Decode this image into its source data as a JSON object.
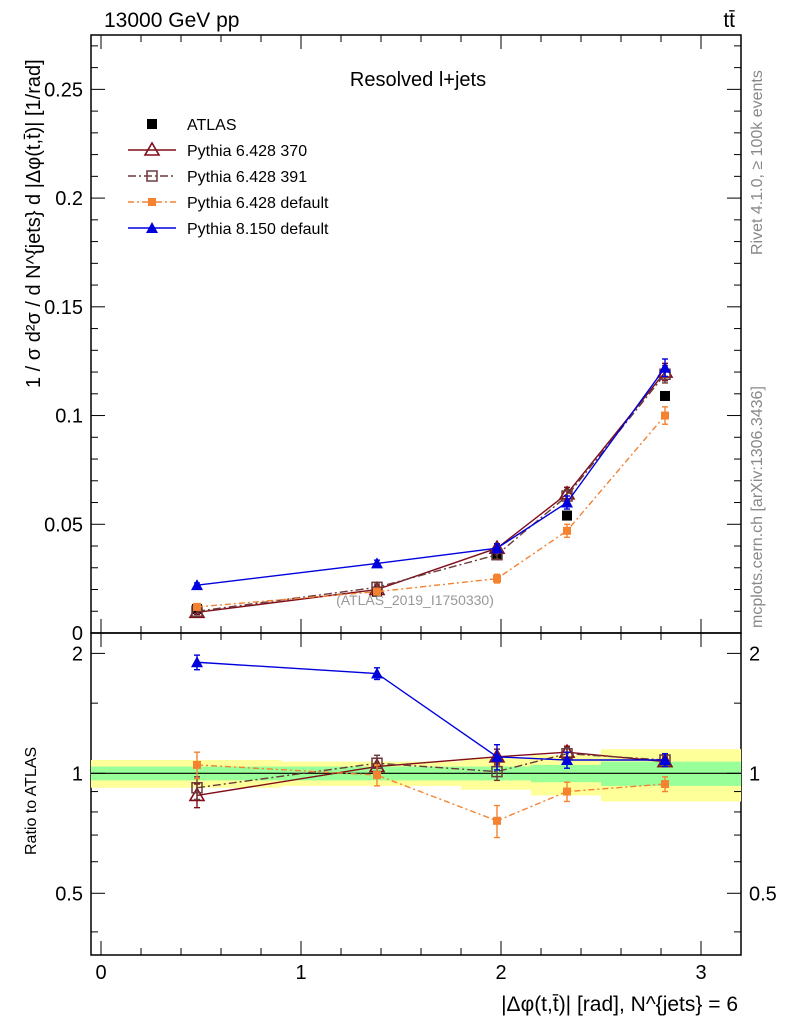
{
  "header": {
    "energy_label": "13000 GeV pp",
    "process_label": "tt̄",
    "panel_title": "Resolved l+jets",
    "analysis_id": "(ATLAS_2019_I1750330)",
    "side_label_top": "Rivet 4.1.0, ≥ 100k events",
    "side_label_bottom": "mcplots.cern.ch [arXiv:1306.3436]"
  },
  "legend": {
    "entries": [
      {
        "key": "atlas",
        "label": "ATLAS"
      },
      {
        "key": "py370",
        "label": "Pythia 6.428 370"
      },
      {
        "key": "py391",
        "label": "Pythia 6.428 391"
      },
      {
        "key": "py6def",
        "label": "Pythia 6.428 default"
      },
      {
        "key": "py8def",
        "label": "Pythia 8.150 default"
      }
    ]
  },
  "colors": {
    "atlas": "#000000",
    "py370": "#800d1a",
    "py391": "#6b3a3a",
    "py6def": "#f58231",
    "py8def": "#0000dd",
    "band_inner": "#99ff99",
    "band_outer": "#ffff99"
  },
  "chart_data": [
    {
      "type": "scatter",
      "title": "Resolved l+jets",
      "xlabel": "|Δφ(t,t̄)| [rad], N^{jets} = 6",
      "ylabel": "1 / σ d²σ / d N^{jets} d |Δφ(t,t̄)| [1/rad]",
      "xlim": [
        -0.05,
        3.2
      ],
      "ylim": [
        0,
        0.275
      ],
      "xticks": [
        0,
        1,
        2,
        3
      ],
      "xtick_labels": [
        "0",
        "1",
        "2",
        "3"
      ],
      "yticks": [
        0,
        0.05,
        0.1,
        0.15,
        0.2,
        0.25
      ],
      "ytick_labels": [
        "0",
        "0.05",
        "0.1",
        "0.15",
        "0.2",
        "0.25"
      ],
      "x": [
        0.48,
        1.38,
        1.98,
        2.33,
        2.82
      ],
      "series": [
        {
          "key": "atlas",
          "name": "ATLAS",
          "values": [
            0.011,
            0.019,
            0.036,
            0.054,
            0.109
          ]
        },
        {
          "key": "py370",
          "name": "Pythia 6.428 370",
          "values": [
            0.0095,
            0.02,
            0.039,
            0.064,
            0.12
          ],
          "errors": [
            0.001,
            0.0015,
            0.002,
            0.003,
            0.004
          ]
        },
        {
          "key": "py391",
          "name": "Pythia 6.428 391",
          "values": [
            0.01,
            0.021,
            0.036,
            0.063,
            0.119
          ],
          "errors": [
            0.001,
            0.0015,
            0.002,
            0.003,
            0.004
          ]
        },
        {
          "key": "py6def",
          "name": "Pythia 6.428 default",
          "values": [
            0.012,
            0.019,
            0.025,
            0.047,
            0.1
          ],
          "errors": [
            0.001,
            0.0015,
            0.002,
            0.003,
            0.004
          ]
        },
        {
          "key": "py8def",
          "name": "Pythia 8.150 default",
          "values": [
            0.022,
            0.032,
            0.039,
            0.06,
            0.122
          ],
          "errors": [
            0.001,
            0.0015,
            0.002,
            0.003,
            0.004
          ]
        }
      ]
    },
    {
      "type": "scatter",
      "ylabel": "Ratio to ATLAS",
      "xlim": [
        -0.05,
        3.2
      ],
      "ylim": [
        0.35,
        2.25
      ],
      "yticks": [
        0.5,
        1,
        2
      ],
      "ytick_labels": [
        "0.5",
        "1",
        "2"
      ],
      "x": [
        0.48,
        1.38,
        1.98,
        2.33,
        2.82
      ],
      "series": [
        {
          "key": "py370",
          "name": "Pythia 6.428 370",
          "values": [
            0.88,
            1.04,
            1.1,
            1.13,
            1.07
          ],
          "errors": [
            0.06,
            0.05,
            0.05,
            0.04,
            0.03
          ]
        },
        {
          "key": "py391",
          "name": "Pythia 6.428 391",
          "values": [
            0.92,
            1.06,
            1.01,
            1.12,
            1.08
          ],
          "errors": [
            0.06,
            0.05,
            0.05,
            0.04,
            0.03
          ]
        },
        {
          "key": "py6def",
          "name": "Pythia 6.428 default",
          "values": [
            1.05,
            0.99,
            0.76,
            0.9,
            0.94
          ],
          "errors": [
            0.08,
            0.06,
            0.07,
            0.05,
            0.04
          ]
        },
        {
          "key": "py8def",
          "name": "Pythia 8.150 default",
          "values": [
            1.9,
            1.78,
            1.1,
            1.08,
            1.08
          ],
          "errors": [
            0.08,
            0.06,
            0.08,
            0.05,
            0.04
          ]
        }
      ],
      "bands": [
        {
          "x0": -0.05,
          "x1": 0.9,
          "inner": [
            0.96,
            1.04
          ],
          "outer": [
            0.92,
            1.08
          ]
        },
        {
          "x0": 0.9,
          "x1": 1.8,
          "inner": [
            0.96,
            1.04
          ],
          "outer": [
            0.93,
            1.07
          ]
        },
        {
          "x0": 1.8,
          "x1": 2.15,
          "inner": [
            0.96,
            1.04
          ],
          "outer": [
            0.91,
            1.09
          ]
        },
        {
          "x0": 2.15,
          "x1": 2.5,
          "inner": [
            0.95,
            1.05
          ],
          "outer": [
            0.88,
            1.11
          ]
        },
        {
          "x0": 2.5,
          "x1": 3.2,
          "inner": [
            0.93,
            1.07
          ],
          "outer": [
            0.85,
            1.15
          ]
        }
      ]
    }
  ]
}
